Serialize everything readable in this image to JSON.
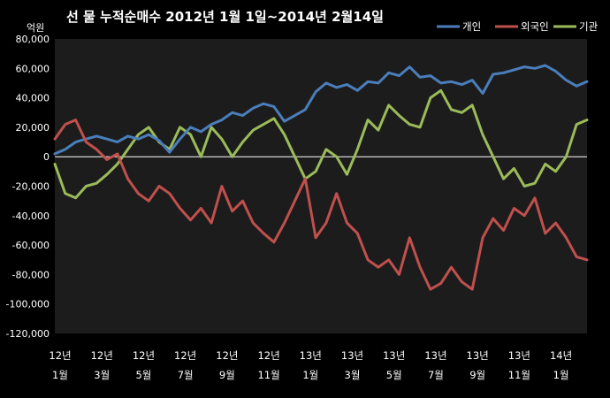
{
  "chart_data": {
    "type": "line",
    "title": "선 물 누적순매수 2012년 1월 1일~2014년 2월14일",
    "unit_label": "억원",
    "ylim": [
      -120000,
      80000
    ],
    "y_ticks": [
      "80,000",
      "60,000",
      "40,000",
      "20,000",
      "0",
      "-20,000",
      "-40,000",
      "-60,000",
      "-80,000",
      "-100,000",
      "-120,000"
    ],
    "y_tick_values": [
      80000,
      60000,
      40000,
      20000,
      0,
      -20000,
      -40000,
      -60000,
      -80000,
      -100000,
      -120000
    ],
    "x_ticks": [
      {
        "year": "12년",
        "month": "1월",
        "pos": 0
      },
      {
        "year": "12년",
        "month": "3월",
        "pos": 2
      },
      {
        "year": "12년",
        "month": "5월",
        "pos": 4
      },
      {
        "year": "12년",
        "month": "7월",
        "pos": 6
      },
      {
        "year": "12년",
        "month": "9월",
        "pos": 8
      },
      {
        "year": "12년",
        "month": "11월",
        "pos": 10
      },
      {
        "year": "13년",
        "month": "1월",
        "pos": 12
      },
      {
        "year": "13년",
        "month": "3월",
        "pos": 14
      },
      {
        "year": "13년",
        "month": "5월",
        "pos": 16
      },
      {
        "year": "13년",
        "month": "7월",
        "pos": 18
      },
      {
        "year": "13년",
        "month": "9월",
        "pos": 20
      },
      {
        "year": "13년",
        "month": "11월",
        "pos": 22
      },
      {
        "year": "14년",
        "month": "1월",
        "pos": 24
      }
    ],
    "x_range": [
      0,
      25.5
    ],
    "legend_position": "top-right",
    "grid": false,
    "series": [
      {
        "name": "개인",
        "color": "#4a7ebb",
        "x": [
          0,
          0.5,
          1,
          1.5,
          2,
          2.5,
          3,
          3.5,
          4,
          4.5,
          5,
          5.5,
          6,
          6.5,
          7,
          7.5,
          8,
          8.5,
          9,
          9.5,
          10,
          10.5,
          11,
          11.5,
          12,
          12.5,
          13,
          13.5,
          14,
          14.5,
          15,
          15.5,
          16,
          16.5,
          17,
          17.5,
          18,
          18.5,
          19,
          19.5,
          20,
          20.5,
          21,
          21.5,
          22,
          22.5,
          23,
          23.5,
          24,
          24.5,
          25,
          25.5
        ],
        "values": [
          2000,
          5000,
          10000,
          12000,
          14000,
          12000,
          10000,
          14000,
          12000,
          15000,
          11000,
          3000,
          12000,
          20000,
          17000,
          22000,
          25000,
          30000,
          28000,
          33000,
          36000,
          34000,
          24000,
          28000,
          32000,
          44000,
          50000,
          47000,
          49000,
          45000,
          51000,
          50000,
          57000,
          55000,
          61000,
          54000,
          55000,
          50000,
          51000,
          49000,
          52000,
          43000,
          56000,
          57000,
          59000,
          61000,
          60000,
          62000,
          58000,
          52000,
          48000,
          51000
        ]
      },
      {
        "name": "외국인",
        "color": "#c0504d",
        "x": [
          0,
          0.5,
          1,
          1.5,
          2,
          2.5,
          3,
          3.5,
          4,
          4.5,
          5,
          5.5,
          6,
          6.5,
          7,
          7.5,
          8,
          8.5,
          9,
          9.5,
          10,
          10.5,
          11,
          11.5,
          12,
          12.5,
          13,
          13.5,
          14,
          14.5,
          15,
          15.5,
          16,
          16.5,
          17,
          17.5,
          18,
          18.5,
          19,
          19.5,
          20,
          20.5,
          21,
          21.5,
          22,
          22.5,
          23,
          23.5,
          24,
          24.5,
          25,
          25.5
        ],
        "values": [
          12000,
          22000,
          25000,
          10000,
          5000,
          -2000,
          2000,
          -15000,
          -25000,
          -30000,
          -20000,
          -25000,
          -35000,
          -43000,
          -35000,
          -45000,
          -20000,
          -37000,
          -30000,
          -45000,
          -52000,
          -58000,
          -45000,
          -30000,
          -15000,
          -55000,
          -45000,
          -25000,
          -45000,
          -52000,
          -70000,
          -75000,
          -70000,
          -80000,
          -55000,
          -75000,
          -90000,
          -86000,
          -75000,
          -85000,
          -90000,
          -55000,
          -42000,
          -50000,
          -35000,
          -40000,
          -28000,
          -52000,
          -45000,
          -55000,
          -68000,
          -70000
        ]
      },
      {
        "name": "기관",
        "color": "#9bbb59",
        "x": [
          0,
          0.5,
          1,
          1.5,
          2,
          2.5,
          3,
          3.5,
          4,
          4.5,
          5,
          5.5,
          6,
          6.5,
          7,
          7.5,
          8,
          8.5,
          9,
          9.5,
          10,
          10.5,
          11,
          11.5,
          12,
          12.5,
          13,
          13.5,
          14,
          14.5,
          15,
          15.5,
          16,
          16.5,
          17,
          17.5,
          18,
          18.5,
          19,
          19.5,
          20,
          20.5,
          21,
          21.5,
          22,
          22.5,
          23,
          23.5,
          24,
          24.5,
          25,
          25.5
        ],
        "values": [
          -5000,
          -25000,
          -28000,
          -20000,
          -18000,
          -12000,
          -5000,
          5000,
          15000,
          20000,
          10000,
          5000,
          20000,
          15000,
          0,
          20000,
          12000,
          0,
          10000,
          18000,
          22000,
          26000,
          15000,
          0,
          -15000,
          -10000,
          5000,
          0,
          -12000,
          5000,
          25000,
          18000,
          35000,
          28000,
          22000,
          20000,
          40000,
          45000,
          32000,
          30000,
          35000,
          15000,
          0,
          -15000,
          -8000,
          -20000,
          -18000,
          -5000,
          -10000,
          0,
          22000,
          25000
        ]
      }
    ]
  }
}
